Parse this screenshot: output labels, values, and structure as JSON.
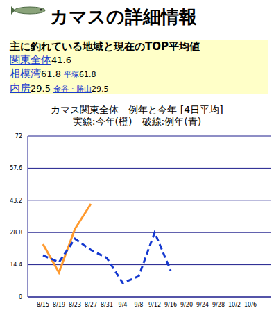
{
  "page": {
    "title": "カマスの詳細情報",
    "summary": {
      "heading": "主に釣れている地域と現在のTOP平均値",
      "rows": [
        {
          "area": "関東全体",
          "value": 41.6
        },
        {
          "area": "相模湾",
          "value": 61.8,
          "sub": "平塚",
          "sub_value": 61.8
        },
        {
          "area": "内房",
          "value": 29.5,
          "sub": "金谷・勝山",
          "sub_value": 29.5
        }
      ]
    }
  },
  "chart_data": {
    "type": "line",
    "title": "カマス関東全体　例年と今年 [4日平均]",
    "subtitle": "実線:今年(橙)　破線:例年(青)",
    "categories": [
      "8/15",
      "8/19",
      "8/23",
      "8/27",
      "8/31",
      "9/4",
      "9/8",
      "9/12",
      "9/16",
      "9/20",
      "9/24",
      "9/28",
      "10/2",
      "10/6"
    ],
    "series": [
      {
        "name": "今年",
        "color": "#ff9a2e",
        "line_style": "solid",
        "values": [
          23.6,
          10.9,
          30.4,
          41.6,
          null,
          null,
          null,
          null,
          null,
          null,
          null,
          null,
          null,
          null
        ]
      },
      {
        "name": "例年",
        "color": "#1438d0",
        "line_style": "dashed",
        "values": [
          18.6,
          15.5,
          26,
          21,
          17.4,
          6.2,
          9.3,
          28.8,
          11.8,
          null,
          null,
          null,
          null,
          null
        ]
      }
    ],
    "ylim": [
      0,
      72
    ],
    "yticks": [
      0,
      14.4,
      28.8,
      43.2,
      57.6,
      72
    ],
    "grid": true
  }
}
